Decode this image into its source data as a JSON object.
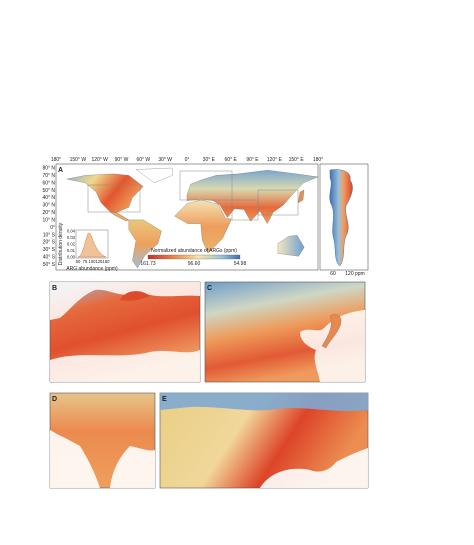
{
  "panel_a": {
    "label": "A",
    "lon_labels": [
      "180°",
      "150° W",
      "120° W",
      "90° W",
      "60° W",
      "30° W",
      "0°",
      "30° E",
      "60° E",
      "90° E",
      "120° E",
      "150° E",
      "180°"
    ],
    "lat_labels": [
      "80° N",
      "70° N",
      "60° N",
      "50° N",
      "40° N",
      "30° N",
      "20° N",
      "10° N",
      "0°",
      "10° S",
      "20° S",
      "30° S",
      "40° S",
      "50° S"
    ],
    "colorbar": {
      "title": "Normalized abundance of ARGs (ppm)",
      "ticks": [
        "161.73",
        "96.60",
        "54.98"
      ]
    },
    "inset": {
      "y_label": "Distribution density",
      "y_ticks": [
        "0.04",
        "0.03",
        "0.02",
        "0.01",
        "0.00"
      ],
      "x_ticks": [
        "50",
        "75",
        "100",
        "125",
        "150"
      ],
      "x_label": "ARG abundance (ppm)"
    },
    "profile": {
      "x_ticks": [
        "60",
        "120 ppm"
      ]
    }
  },
  "panel_labels": [
    "B",
    "C",
    "D",
    "E"
  ]
}
